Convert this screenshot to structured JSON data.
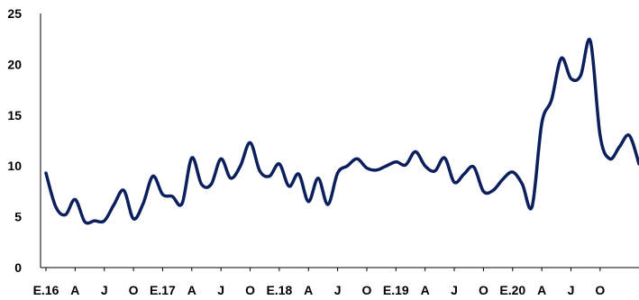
{
  "chart_data": {
    "type": "line",
    "title": "",
    "xlabel": "",
    "ylabel": "",
    "ylim": [
      0,
      25
    ],
    "y_ticks": [
      "0",
      "5",
      "10",
      "15",
      "20",
      "25"
    ],
    "x_tick_labels": [
      "E.16",
      "A",
      "J",
      "O",
      "E.17",
      "A",
      "J",
      "O",
      "E.18",
      "A",
      "J",
      "O",
      "E.19",
      "A",
      "J",
      "O",
      "E.20",
      "A",
      "J",
      "O"
    ],
    "grid": false,
    "legend": "none",
    "line_color": "#0a1f5c",
    "series": [
      {
        "values": [
          9.3,
          6.0,
          5.2,
          6.7,
          4.5,
          4.6,
          4.6,
          6.2,
          7.6,
          4.8,
          6.3,
          9.0,
          7.2,
          7.0,
          6.3,
          10.8,
          8.2,
          8.2,
          10.7,
          8.8,
          10.0,
          12.3,
          9.5,
          9.0,
          10.2,
          8.0,
          9.2,
          6.5,
          8.8,
          6.2,
          9.3,
          10.0,
          10.7,
          9.8,
          9.6,
          10.0,
          10.4,
          10.1,
          11.4,
          10.0,
          9.5,
          10.8,
          8.4,
          9.2,
          9.9,
          7.5,
          7.6,
          8.7,
          9.4,
          8.2,
          6.0,
          14.2,
          16.5,
          20.6,
          18.6,
          18.9,
          22.3,
          13.0,
          10.7,
          11.9,
          13.0,
          10.2
        ]
      }
    ]
  }
}
